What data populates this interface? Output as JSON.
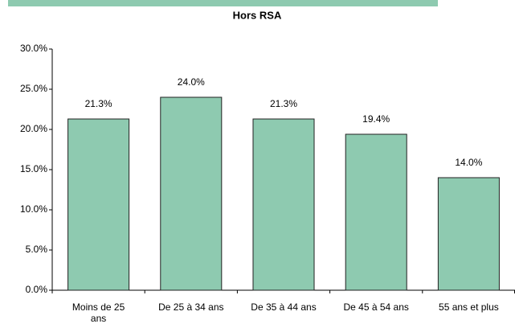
{
  "chart_data": {
    "type": "bar",
    "title": "Hors RSA",
    "categories": [
      "Moins de 25 ans",
      "De 25 à 34 ans",
      "De 35 à 44 ans",
      "De 45 à 54 ans",
      "55 ans et plus"
    ],
    "values": [
      21.3,
      24.0,
      21.3,
      19.4,
      14.0
    ],
    "value_labels": [
      "21.3%",
      "24.0%",
      "21.3%",
      "19.4%",
      "14.0%"
    ],
    "color": "#8ecab0",
    "ylim": [
      0,
      30
    ],
    "yticks": [
      {
        "value": 0,
        "label": "0.0%"
      },
      {
        "value": 5,
        "label": "5.0%"
      },
      {
        "value": 10,
        "label": "10.0%"
      },
      {
        "value": 15,
        "label": "15.0%"
      },
      {
        "value": 20,
        "label": "20.0%"
      },
      {
        "value": 25,
        "label": "25.0%"
      },
      {
        "value": 30,
        "label": "30.0%"
      }
    ],
    "grid": false
  }
}
